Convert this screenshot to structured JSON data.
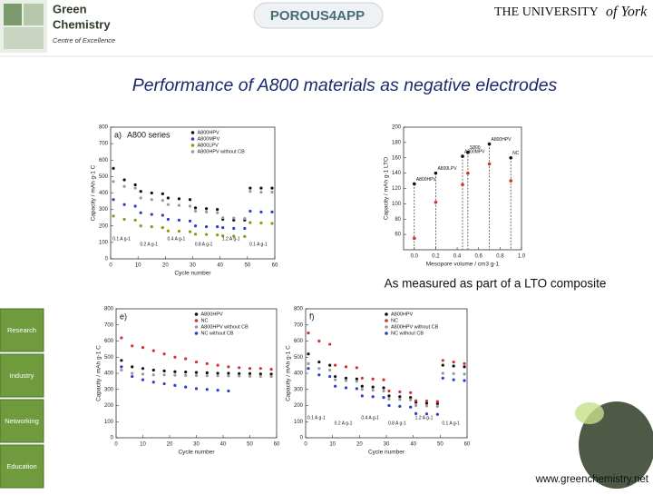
{
  "header": {
    "logo_lines": [
      "Green",
      "Chemistry"
    ],
    "logo_subtitle": "Centre of Excellence",
    "partner": "POROUS4APP",
    "university": "THE UNIVERSITY",
    "university_script": "of York"
  },
  "title": "Performance of A800 materials as negative electrodes",
  "caption": "As measured as part of a LTO composite",
  "sidebar": [
    "Research",
    "Industry",
    "Networking",
    "Education"
  ],
  "footer_url": "www.greenchemistry.net",
  "chart_data": [
    {
      "type": "scatter",
      "panel": "a)",
      "title": "A800 series",
      "x_label": "Cycle number",
      "y_label": "Capacity / mAh g-1 C",
      "xlim": [
        0,
        60
      ],
      "xticks": [
        0,
        10,
        20,
        30,
        40,
        50,
        60
      ],
      "ylim": [
        0,
        800
      ],
      "yticks": [
        0,
        100,
        200,
        300,
        400,
        500,
        600,
        700,
        800
      ],
      "annotations": [
        "0.1 A g-1",
        "0.2 A g-1",
        "0.4 A g-1",
        "0.8 A g-1",
        "1.2 A g-1",
        "0.1 A g-1"
      ],
      "x": [
        1,
        5,
        9,
        11,
        15,
        19,
        21,
        25,
        29,
        31,
        35,
        39,
        41,
        45,
        49,
        51,
        55,
        59
      ],
      "series": [
        {
          "name": "A800HPV",
          "color": "#111111",
          "values": [
            550,
            480,
            450,
            410,
            400,
            395,
            370,
            365,
            360,
            310,
            305,
            300,
            240,
            235,
            235,
            430,
            430,
            430
          ]
        },
        {
          "name": "A800MPV",
          "color": "#2a3fc8",
          "values": [
            360,
            330,
            320,
            280,
            270,
            265,
            240,
            235,
            230,
            200,
            195,
            195,
            190,
            185,
            185,
            290,
            285,
            285
          ]
        },
        {
          "name": "A800LPV",
          "color": "#8a9a10",
          "values": [
            260,
            240,
            235,
            200,
            195,
            190,
            170,
            168,
            165,
            150,
            148,
            145,
            140,
            138,
            136,
            220,
            218,
            215
          ]
        },
        {
          "name": "A800HPV without CB",
          "color": "#9a9a9a",
          "values": [
            470,
            440,
            430,
            370,
            360,
            355,
            330,
            325,
            320,
            290,
            285,
            280,
            250,
            248,
            245,
            410,
            405,
            405
          ]
        }
      ]
    },
    {
      "type": "mesopore",
      "x_label": "Mesopore volume / cm3 g-1",
      "y_label": "Capacity / mAh g-1 LTO",
      "xlim": [
        -0.1,
        1.0
      ],
      "xticks": [
        {
          "value": 0,
          "label": "0.0"
        },
        0.2,
        0.4,
        0.6,
        0.8,
        {
          "value": 1,
          "label": "1.0"
        }
      ],
      "ylim": [
        40,
        200
      ],
      "yticks": [
        60,
        80,
        100,
        120,
        140,
        160,
        180,
        200
      ],
      "x": [
        0,
        0.2,
        0.45,
        0.5,
        0.7,
        0.9
      ],
      "point_labels": [
        "A800HPV",
        "A800LPV",
        "A800MPV",
        "S800",
        "A800HPV",
        "NC"
      ],
      "series": [
        {
          "color": "#111111",
          "values": [
            126,
            140,
            162,
            167,
            178,
            160
          ]
        },
        {
          "color": "#d43030",
          "values": [
            55,
            102,
            125,
            140,
            152,
            130
          ]
        }
      ]
    },
    {
      "type": "scatter",
      "panel": "e)",
      "x_label": "Cycle number",
      "y_label": "Capacity / mAh g-1 C",
      "xlim": [
        0,
        60
      ],
      "xticks": [
        0,
        10,
        20,
        30,
        40,
        50,
        60
      ],
      "ylim": [
        0,
        800
      ],
      "yticks": [
        0,
        100,
        200,
        300,
        400,
        500,
        600,
        700,
        800
      ],
      "x": [
        2,
        6,
        10,
        14,
        18,
        22,
        26,
        30,
        34,
        38,
        42,
        46,
        50,
        54,
        58
      ],
      "series": [
        {
          "name": "A800HPV",
          "color": "#111111",
          "values": [
            480,
            440,
            430,
            420,
            415,
            410,
            408,
            405,
            403,
            400,
            400,
            398,
            398,
            396,
            395
          ]
        },
        {
          "name": "NC",
          "color": "#d43030",
          "values": [
            620,
            570,
            560,
            540,
            520,
            500,
            490,
            470,
            460,
            450,
            440,
            435,
            430,
            430,
            425
          ]
        },
        {
          "name": "A800HPV without CB",
          "color": "#9a9a9a",
          "values": [
            420,
            400,
            395,
            390,
            390,
            388,
            387,
            386,
            385,
            385,
            384,
            383,
            382,
            381,
            380
          ]
        },
        {
          "name": "NC without CB",
          "color": "#2a3fc8",
          "values": [
            440,
            380,
            360,
            345,
            335,
            325,
            315,
            305,
            300,
            295,
            290,
            null,
            null,
            null,
            null
          ]
        }
      ]
    },
    {
      "type": "scatter",
      "panel": "f)",
      "x_label": "Cycle number",
      "y_label": "Capacity / mAh g-1 C",
      "xlim": [
        0,
        60
      ],
      "xticks": [
        0,
        10,
        20,
        30,
        40,
        50,
        60
      ],
      "ylim": [
        0,
        800
      ],
      "yticks": [
        0,
        100,
        200,
        300,
        400,
        500,
        600,
        700,
        800
      ],
      "annotations": [
        "0.1 A g-1",
        "0.2 A g-1",
        "0.4 A g-1",
        "0.8 A g-1",
        "1.2 A g-1",
        "0.1 A g-1"
      ],
      "x": [
        1,
        5,
        9,
        11,
        15,
        19,
        21,
        25,
        29,
        31,
        35,
        39,
        41,
        45,
        49,
        51,
        55,
        59
      ],
      "series": [
        {
          "name": "A800HPV",
          "color": "#111111",
          "values": [
            520,
            470,
            450,
            380,
            370,
            365,
            320,
            315,
            310,
            260,
            255,
            250,
            220,
            215,
            212,
            450,
            445,
            440
          ]
        },
        {
          "name": "NC",
          "color": "#d43030",
          "values": [
            650,
            600,
            580,
            450,
            440,
            435,
            370,
            365,
            360,
            290,
            285,
            280,
            230,
            228,
            225,
            480,
            470,
            460
          ]
        },
        {
          "name": "A800HPV without CB",
          "color": "#9a9a9a",
          "values": [
            460,
            430,
            420,
            360,
            355,
            350,
            300,
            295,
            290,
            240,
            238,
            235,
            200,
            198,
            195,
            400,
            398,
            395
          ]
        },
        {
          "name": "NC without CB",
          "color": "#2a3fc8",
          "values": [
            430,
            390,
            380,
            320,
            310,
            305,
            260,
            255,
            250,
            200,
            195,
            190,
            150,
            148,
            145,
            370,
            360,
            355
          ]
        }
      ]
    }
  ]
}
